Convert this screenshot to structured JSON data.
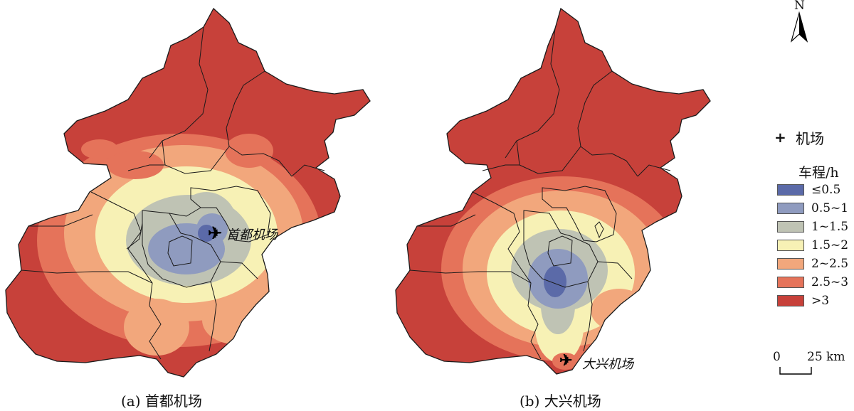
{
  "captions": {
    "a": "(a) 首都机场",
    "b": "(b) 大兴机场"
  },
  "airports": {
    "a_label": "首都机场",
    "b_label": "大兴机场"
  },
  "legend": {
    "airport_symbol": "+",
    "airport_label": "机场",
    "title": "车程/h",
    "classes": [
      {
        "label": "≤0.5",
        "color": "#5b6aa8"
      },
      {
        "label": "0.5~1",
        "color": "#8f9bbf"
      },
      {
        "label": "1~1.5",
        "color": "#bfc3b4"
      },
      {
        "label": "1.5~2",
        "color": "#f7f1b5"
      },
      {
        "label": "2~2.5",
        "color": "#f2a77c"
      },
      {
        "label": "2.5~3",
        "color": "#e5735a"
      },
      {
        "label": ">3",
        "color": "#c7413a"
      }
    ]
  },
  "north_arrow": {
    "label": "N"
  },
  "scale_bar": {
    "zero": "0",
    "distance": "25 km"
  }
}
